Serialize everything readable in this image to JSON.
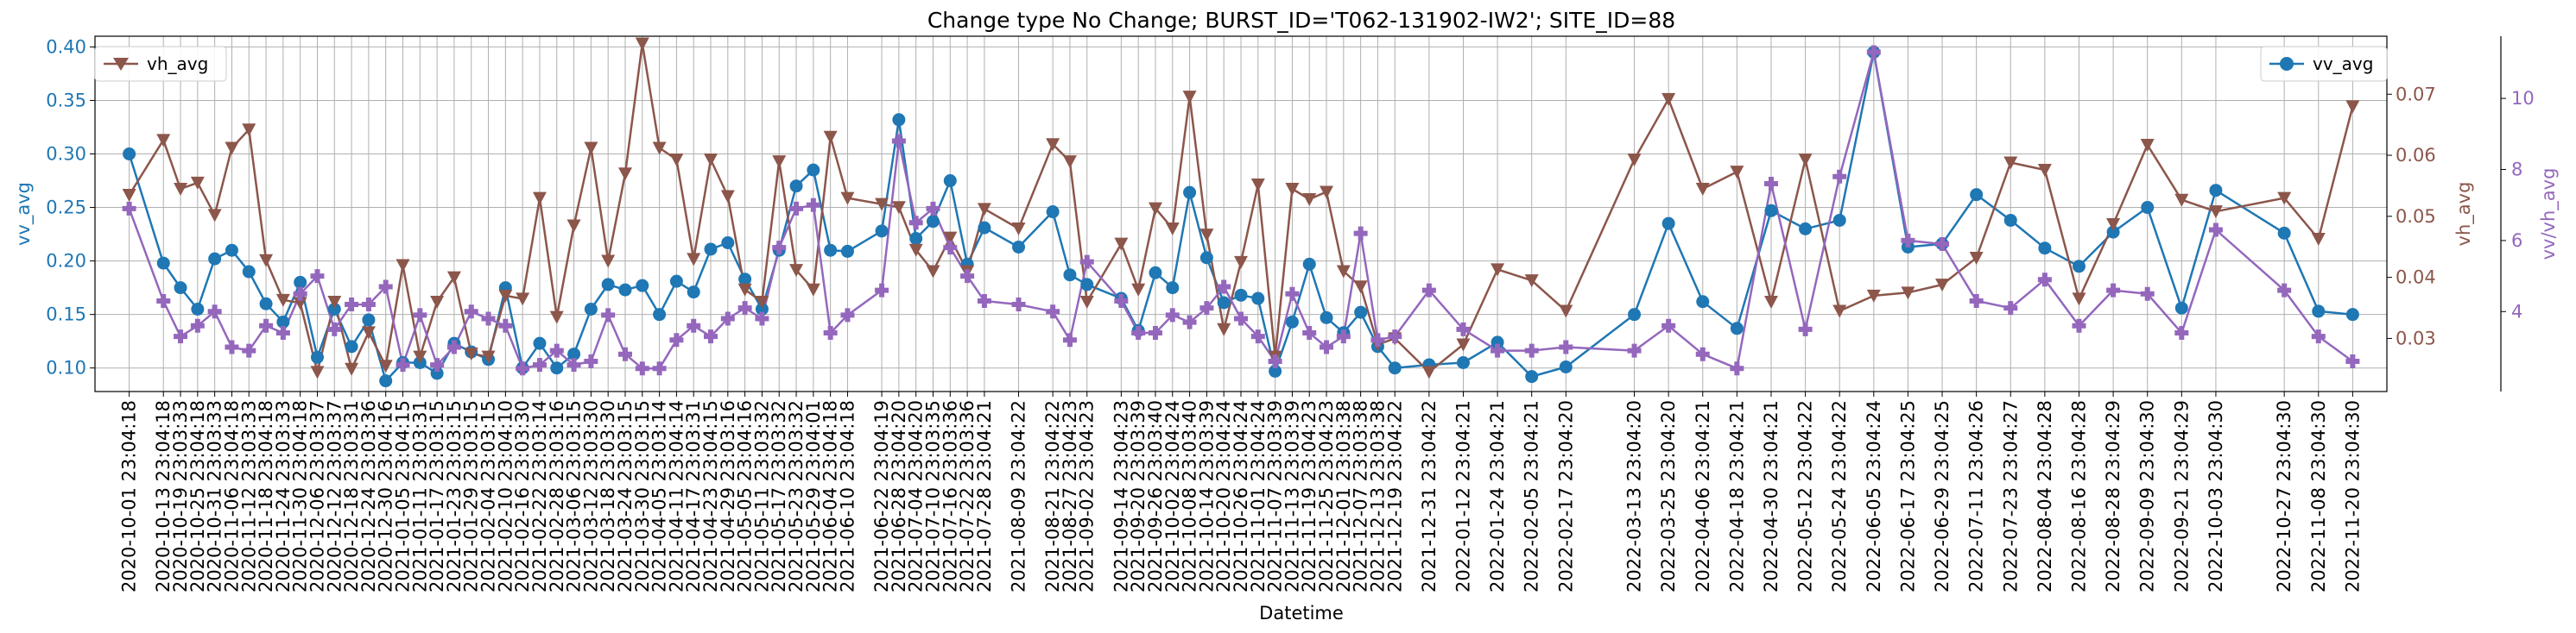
{
  "chart_data": {
    "type": "line",
    "title": "Change type No Change; BURST_ID='T062-131902-IW2'; SITE_ID=88",
    "xlabel": "Datetime",
    "x_tick_labels": [
      "2020-10-01 23:04:18",
      "2020-10-13 23:04:18",
      "2020-10-19 23:03:33",
      "2020-10-25 23:04:18",
      "2020-10-31 23:03:33",
      "2020-11-06 23:04:18",
      "2020-11-12 23:03:33",
      "2020-11-18 23:04:18",
      "2020-11-24 23:03:33",
      "2020-11-30 23:04:18",
      "2020-12-06 23:03:37",
      "2020-12-12 23:03:37",
      "2020-12-18 23:03:31",
      "2020-12-24 23:03:36",
      "2020-12-30 23:04:16",
      "2021-01-05 23:04:15",
      "2021-01-11 23:03:31",
      "2021-01-17 23:03:15",
      "2021-01-23 23:03:15",
      "2021-01-29 23:03:15",
      "2021-02-04 23:03:15",
      "2021-02-10 23:04:10",
      "2021-02-16 23:03:30",
      "2021-02-22 23:03:14",
      "2021-02-28 23:03:16",
      "2021-03-06 23:03:15",
      "2021-03-12 23:03:30",
      "2021-03-18 23:03:30",
      "2021-03-24 23:03:15",
      "2021-03-30 23:03:15",
      "2021-04-05 23:03:14",
      "2021-04-11 23:04:14",
      "2021-04-17 23:03:31",
      "2021-04-23 23:04:15",
      "2021-04-29 23:03:16",
      "2021-05-05 23:04:16",
      "2021-05-11 23:03:32",
      "2021-05-17 23:03:32",
      "2021-05-23 23:03:32",
      "2021-05-29 23:04:01",
      "2021-06-04 23:04:18",
      "2021-06-10 23:04:18",
      "2021-06-22 23:04:19",
      "2021-06-28 23:04:20",
      "2021-07-04 23:04:20",
      "2021-07-10 23:03:35",
      "2021-07-16 23:03:36",
      "2021-07-22 23:03:36",
      "2021-07-28 23:04:21",
      "2021-08-09 23:04:22",
      "2021-08-21 23:04:22",
      "2021-08-27 23:04:23",
      "2021-09-02 23:04:23",
      "2021-09-14 23:04:23",
      "2021-09-20 23:03:39",
      "2021-09-26 23:03:40",
      "2021-10-02 23:04:24",
      "2021-10-08 23:03:40",
      "2021-10-14 23:03:39",
      "2021-10-20 23:04:24",
      "2021-10-26 23:04:24",
      "2021-11-01 23:04:24",
      "2021-11-07 23:03:39",
      "2021-11-13 23:03:39",
      "2021-11-19 23:04:23",
      "2021-11-25 23:04:23",
      "2021-12-01 23:03:38",
      "2021-12-07 23:03:38",
      "2021-12-13 23:03:38",
      "2021-12-19 23:04:22",
      "2021-12-31 23:04:22",
      "2022-01-12 23:04:21",
      "2022-01-24 23:04:21",
      "2022-02-05 23:04:21",
      "2022-02-17 23:04:20",
      "2022-03-13 23:04:20",
      "2022-03-25 23:04:20",
      "2022-04-06 23:04:21",
      "2022-04-18 23:04:21",
      "2022-04-30 23:04:21",
      "2022-05-12 23:04:22",
      "2022-05-24 23:04:22",
      "2022-06-05 23:04:24",
      "2022-06-17 23:04:25",
      "2022-06-29 23:04:25",
      "2022-07-11 23:04:26",
      "2022-07-23 23:04:27",
      "2022-08-04 23:04:28",
      "2022-08-16 23:04:28",
      "2022-08-28 23:04:29",
      "2022-09-09 23:04:30",
      "2022-09-21 23:04:29",
      "2022-10-03 23:04:30",
      "2022-10-27 23:04:30",
      "2022-11-08 23:04:30",
      "2022-11-20 23:04:30"
    ],
    "x_start": "2020-10-01",
    "x_end": "2022-11-20",
    "y_left": {
      "label": "vv_avg",
      "ylim": [
        0.078,
        0.41
      ],
      "ticks": [
        0.1,
        0.15,
        0.2,
        0.25,
        0.3,
        0.35,
        0.4
      ],
      "tick_labels": [
        "0.10",
        "0.15",
        "0.20",
        "0.25",
        "0.30",
        "0.35",
        "0.40"
      ],
      "color": "#1f77b4"
    },
    "y_right1": {
      "label": "vh_avg",
      "ylim": [
        0.0213,
        0.0795
      ],
      "ticks": [
        0.03,
        0.04,
        0.05,
        0.06,
        0.07
      ],
      "tick_labels": [
        "0.03",
        "0.04",
        "0.05",
        "0.06",
        "0.07"
      ],
      "color": "#8c564b"
    },
    "y_right2": {
      "label": "vv/vh_avg",
      "ylim": [
        1.75,
        11.75
      ],
      "ticks": [
        4,
        6,
        8,
        10
      ],
      "tick_labels": [
        "4",
        "6",
        "8",
        "10"
      ],
      "color": "#9467bd"
    },
    "grid": true,
    "series": [
      {
        "name": "vv_avg",
        "axis": "left",
        "color": "#1f77b4",
        "marker": "circle",
        "legend_position": "upper-right",
        "values": [
          0.3,
          0.198,
          0.175,
          0.155,
          0.202,
          0.21,
          0.19,
          0.16,
          0.143,
          0.18,
          0.11,
          0.155,
          0.12,
          0.145,
          0.088,
          0.105,
          0.105,
          0.095,
          0.123,
          0.115,
          0.108,
          0.175,
          0.1,
          0.123,
          0.1,
          0.113,
          0.155,
          0.178,
          0.173,
          0.177,
          0.15,
          0.181,
          0.171,
          0.211,
          0.217,
          0.183,
          0.155,
          0.21,
          0.27,
          0.285,
          0.21,
          0.209,
          0.228,
          0.332,
          0.221,
          0.237,
          0.275,
          0.197,
          0.231,
          0.213,
          0.246,
          0.187,
          0.178,
          0.165,
          0.135,
          0.189,
          0.175,
          0.264,
          0.203,
          0.161,
          0.168,
          0.165,
          0.097,
          0.143,
          0.197,
          0.147,
          0.133,
          0.152,
          0.12,
          0.1,
          0.103,
          0.105,
          0.124,
          0.092,
          0.101,
          0.15,
          0.235,
          0.162,
          0.137,
          0.247,
          0.23,
          0.238,
          0.395,
          0.213,
          0.216,
          0.262,
          0.238,
          0.212,
          0.195,
          0.227,
          0.25,
          0.156,
          0.266,
          0.226,
          0.153,
          0.15
        ]
      },
      {
        "name": "vh_avg",
        "axis": "right1",
        "color": "#8c564b",
        "marker": "triangle-down",
        "legend_position": "upper-left",
        "values": [
          0.0535,
          0.0625,
          0.0545,
          0.0555,
          0.0502,
          0.0612,
          0.0642,
          0.0428,
          0.0363,
          0.0358,
          0.0245,
          0.036,
          0.025,
          0.031,
          0.0255,
          0.042,
          0.027,
          0.036,
          0.04,
          0.0275,
          0.027,
          0.037,
          0.0365,
          0.053,
          0.0335,
          0.0485,
          0.0612,
          0.0427,
          0.057,
          0.0783,
          0.0612,
          0.0593,
          0.043,
          0.0593,
          0.0533,
          0.038,
          0.036,
          0.059,
          0.0412,
          0.038,
          0.063,
          0.053,
          0.052,
          0.0515,
          0.0445,
          0.041,
          0.0465,
          0.041,
          0.0512,
          0.048,
          0.0618,
          0.059,
          0.036,
          0.0455,
          0.038,
          0.0513,
          0.048,
          0.0696,
          0.047,
          0.0315,
          0.0425,
          0.0552,
          0.027,
          0.0545,
          0.0528,
          0.054,
          0.041,
          0.0385,
          0.029,
          0.03,
          0.0245,
          0.029,
          0.0413,
          0.0395,
          0.0345,
          0.0593,
          0.0692,
          0.0545,
          0.0573,
          0.036,
          0.0593,
          0.0345,
          0.037,
          0.0375,
          0.0388,
          0.0432,
          0.0588,
          0.0576,
          0.0365,
          0.0487,
          0.0617,
          0.0527,
          0.0508,
          0.053,
          0.0463,
          0.068
        ]
      },
      {
        "name": "vv/vh_avg",
        "axis": "right2",
        "color": "#9467bd",
        "marker": "plus",
        "legend_position": "none",
        "values": [
          6.9,
          4.3,
          3.3,
          3.6,
          4.0,
          3.0,
          2.9,
          3.6,
          3.4,
          4.5,
          5.0,
          3.5,
          4.2,
          4.2,
          4.7,
          2.5,
          3.9,
          2.5,
          3.0,
          4.0,
          3.8,
          3.6,
          2.4,
          2.5,
          2.9,
          2.5,
          2.6,
          3.9,
          2.8,
          2.4,
          2.4,
          3.2,
          3.6,
          3.3,
          3.8,
          4.1,
          3.8,
          5.8,
          6.9,
          7.0,
          3.4,
          3.9,
          4.6,
          8.8,
          6.5,
          6.9,
          5.8,
          5.0,
          4.3,
          4.2,
          4.0,
          3.2,
          5.4,
          4.3,
          3.4,
          3.4,
          3.9,
          3.7,
          4.1,
          4.7,
          3.8,
          3.3,
          2.6,
          4.5,
          3.4,
          3.0,
          3.3,
          6.2,
          3.2,
          3.3,
          4.6,
          3.5,
          2.9,
          2.9,
          3.0,
          2.9,
          3.6,
          2.8,
          2.4,
          7.6,
          3.5,
          7.8,
          11.3,
          6.0,
          5.9,
          4.3,
          4.1,
          4.9,
          3.6,
          4.6,
          4.5,
          3.4,
          6.3,
          4.6,
          3.3,
          2.6
        ]
      }
    ]
  }
}
